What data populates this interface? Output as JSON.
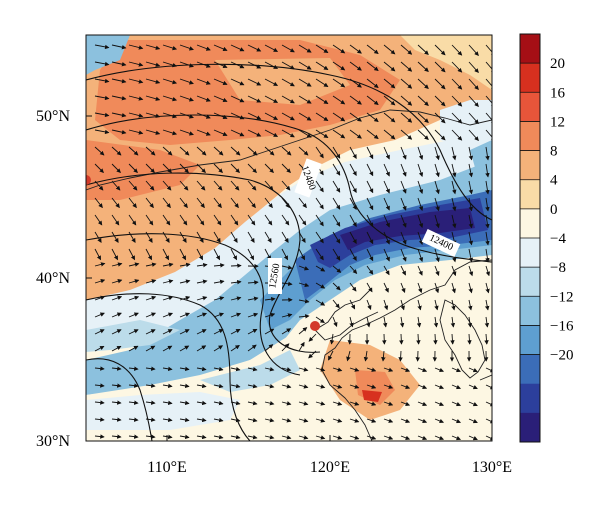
{
  "map": {
    "x_axis": {
      "ticks": [
        {
          "value": 110,
          "label": "110°E"
        },
        {
          "value": 120,
          "label": "120°E"
        },
        {
          "value": 130,
          "label": "130°E"
        }
      ],
      "range": [
        105,
        130
      ]
    },
    "y_axis": {
      "ticks": [
        {
          "value": 30,
          "label": "30°N"
        },
        {
          "value": 40,
          "label": "40°N"
        },
        {
          "value": 50,
          "label": "50°N"
        }
      ],
      "range": [
        30,
        55
      ]
    },
    "contour_labels": [
      "12480",
      "12560",
      "12400"
    ],
    "marker": {
      "lon": 119,
      "lat": 37.3,
      "color": "#d33a2a"
    }
  },
  "colorbar": {
    "labels": [
      "20",
      "16",
      "12",
      "8",
      "4",
      "0",
      "−4",
      "−8",
      "−12",
      "−16",
      "−20"
    ],
    "colors": [
      "#a50f15",
      "#d7301f",
      "#e8553a",
      "#f08a5a",
      "#f4b27a",
      "#f9dca7",
      "#fdf7e3",
      "#e6f1f7",
      "#bcdcea",
      "#8cc1de",
      "#5e9fd0",
      "#3b6db8",
      "#2c3f9c",
      "#2a1f78"
    ]
  }
}
